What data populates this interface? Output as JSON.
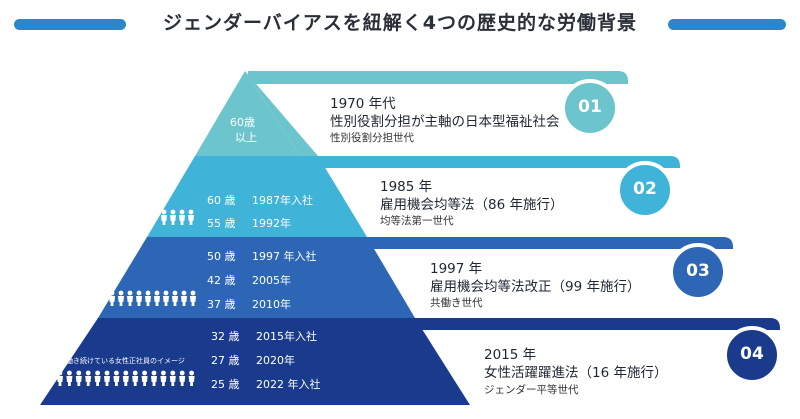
{
  "title": "ジェンダーバイアスを紐解く4つの歴史的な労働背景",
  "colors": {
    "title_bar": "#2e86c8",
    "tier1": "#6cc5cd",
    "tier2": "#3fb3d8",
    "tier3": "#2c66b4",
    "tier4": "#1a3a8b"
  },
  "tiers": [
    {
      "number": "01",
      "year": "1970 年代",
      "law": "性別役割分担が主軸の日本型福祉社会",
      "generation": "性別役割分担世代",
      "ages": [
        "60歳",
        "以上"
      ]
    },
    {
      "number": "02",
      "year": "1985 年",
      "law": "雇用機会均等法（86 年施行）",
      "generation": "均等法第一世代",
      "ages": [
        "60 歳",
        "55 歳"
      ],
      "joins": [
        "1987年入社",
        "1992年"
      ]
    },
    {
      "number": "03",
      "year": "1997 年",
      "law": "雇用機会均等法改正（99 年施行）",
      "generation": "共働き世代",
      "ages": [
        "50 歳",
        "42 歳",
        "37 歳"
      ],
      "joins": [
        "1997 年入社",
        "2005年",
        "2010年"
      ]
    },
    {
      "number": "04",
      "year": "2015 年",
      "law": "女性活躍躍進法（16 年施行）",
      "generation": "ジェンダー平等世代",
      "ages": [
        "32 歳",
        "27 歳",
        "25 歳"
      ],
      "joins": [
        "2015年入社",
        "2020年",
        "2022 年入社"
      ],
      "caption": "働き続けている女性正社員のイメージ"
    }
  ]
}
